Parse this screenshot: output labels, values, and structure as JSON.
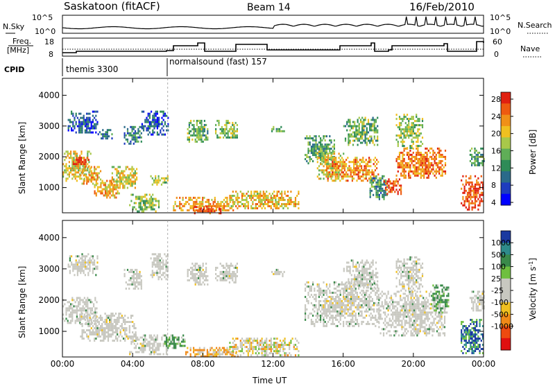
{
  "header": {
    "station": "Saskatoon (fitACF)",
    "beam": "Beam 14",
    "date": "16/Feb/2010"
  },
  "top_panels": {
    "nsky_label": "N.Sky",
    "nsearch_label": "N.Search",
    "freq_label_1": "Freq.",
    "freq_label_2": "[MHz]",
    "nave_label": "Nave",
    "cpid_label": "CPID",
    "noise_ticks_left": [
      "10^5",
      "10^0"
    ],
    "noise_ticks_right": [
      "10^5",
      "10^0"
    ],
    "freq_ticks": [
      "18",
      "8"
    ],
    "nave_ticks": [
      "60",
      "0"
    ],
    "cpid_segments": [
      {
        "name": "themis 3300",
        "start_hour": 0.0
      },
      {
        "name": "normalsound (fast) 157",
        "start_hour": 6.0
      }
    ]
  },
  "chart_data": [
    {
      "type": "heatmap",
      "title": "Power",
      "xlabel": "",
      "ylabel": "Slant Range [km]",
      "xlim": [
        0,
        24
      ],
      "ylim": [
        180,
        4550
      ],
      "x_ticks": [
        0,
        4,
        8,
        12,
        16,
        20,
        24
      ],
      "y_ticks": [
        1000,
        2000,
        3000,
        4000
      ],
      "colorbar": {
        "label": "Power [dB]",
        "ticks": [
          "28",
          "24",
          "20",
          "16",
          "12",
          "8",
          "4"
        ],
        "colors": [
          "#0000ff",
          "#1e3cbe",
          "#2a6a8a",
          "#2e8b57",
          "#5fae57",
          "#a8c84a",
          "#f0c020",
          "#f09018",
          "#ee5a10",
          "#e02010"
        ],
        "range": [
          0,
          30
        ]
      },
      "blobs": [
        {
          "x0": 0.0,
          "x1": 1.6,
          "y0": 1200,
          "y1": 2200,
          "level": 0.6
        },
        {
          "x0": 0.5,
          "x1": 1.5,
          "y0": 1700,
          "y1": 2000,
          "level": 0.9
        },
        {
          "x0": 0.3,
          "x1": 2.0,
          "y0": 2800,
          "y1": 3500,
          "level": 0.2
        },
        {
          "x0": 1.0,
          "x1": 2.2,
          "y0": 1100,
          "y1": 1700,
          "level": 0.7
        },
        {
          "x0": 1.8,
          "x1": 3.2,
          "y0": 700,
          "y1": 1250,
          "level": 0.7
        },
        {
          "x0": 2.8,
          "x1": 4.2,
          "y0": 1000,
          "y1": 1700,
          "level": 0.6
        },
        {
          "x0": 3.5,
          "x1": 4.5,
          "y0": 2400,
          "y1": 3000,
          "level": 0.3
        },
        {
          "x0": 2.0,
          "x1": 2.8,
          "y0": 2600,
          "y1": 2900,
          "level": 0.3
        },
        {
          "x0": 3.8,
          "x1": 5.5,
          "y0": 250,
          "y1": 800,
          "level": 0.5
        },
        {
          "x0": 4.5,
          "x1": 6.0,
          "y0": 2700,
          "y1": 3500,
          "level": 0.2
        },
        {
          "x0": 5.0,
          "x1": 6.0,
          "y0": 1100,
          "y1": 1400,
          "level": 0.5
        },
        {
          "x0": 6.3,
          "x1": 10.0,
          "y0": 250,
          "y1": 700,
          "level": 0.7
        },
        {
          "x0": 7.5,
          "x1": 9.0,
          "y0": 180,
          "y1": 400,
          "level": 0.9
        },
        {
          "x0": 9.5,
          "x1": 13.5,
          "y0": 300,
          "y1": 900,
          "level": 0.65
        },
        {
          "x0": 7.1,
          "x1": 8.3,
          "y0": 2500,
          "y1": 3200,
          "level": 0.45
        },
        {
          "x0": 8.7,
          "x1": 10.0,
          "y0": 2600,
          "y1": 3200,
          "level": 0.5
        },
        {
          "x0": 11.9,
          "x1": 12.6,
          "y0": 2800,
          "y1": 3000,
          "level": 0.4
        },
        {
          "x0": 13.8,
          "x1": 15.5,
          "y0": 1800,
          "y1": 2700,
          "level": 0.4
        },
        {
          "x0": 14.5,
          "x1": 16.0,
          "y0": 1300,
          "y1": 2200,
          "level": 0.6
        },
        {
          "x0": 15.0,
          "x1": 18.0,
          "y0": 1200,
          "y1": 2000,
          "level": 0.75
        },
        {
          "x0": 16.0,
          "x1": 18.0,
          "y0": 2400,
          "y1": 3300,
          "level": 0.45
        },
        {
          "x0": 17.5,
          "x1": 18.5,
          "y0": 600,
          "y1": 1400,
          "level": 0.35
        },
        {
          "x0": 18.3,
          "x1": 19.3,
          "y0": 800,
          "y1": 1300,
          "level": 0.85
        },
        {
          "x0": 19.0,
          "x1": 21.8,
          "y0": 1300,
          "y1": 2300,
          "level": 0.8
        },
        {
          "x0": 19.0,
          "x1": 20.5,
          "y0": 2300,
          "y1": 3400,
          "level": 0.5
        },
        {
          "x0": 22.7,
          "x1": 24.0,
          "y0": 300,
          "y1": 1400,
          "level": 0.9
        },
        {
          "x0": 23.2,
          "x1": 24.0,
          "y0": 1700,
          "y1": 2300,
          "level": 0.4
        }
      ]
    },
    {
      "type": "heatmap",
      "title": "Velocity",
      "xlabel": "Time UT",
      "ylabel": "Slant Range [km]",
      "xlim": [
        0,
        24
      ],
      "ylim": [
        180,
        4550
      ],
      "x_ticks": [
        0,
        4,
        8,
        12,
        16,
        20,
        24
      ],
      "x_tick_labels": [
        "00:00",
        "04:00",
        "08:00",
        "12:00",
        "16:00",
        "20:00",
        "00:00"
      ],
      "y_ticks": [
        1000,
        2000,
        3000,
        4000
      ],
      "colorbar": {
        "label": "Velocity [m s^-1]",
        "ticks": [
          "1000",
          "500",
          "100",
          "25",
          "-25",
          "-100",
          "-500",
          "-1000"
        ],
        "colors": [
          "#1a3aa0",
          "#2e8b8b",
          "#3a8a4a",
          "#6fbf3f",
          "#c8c8c0",
          "#c8c8c0",
          "#f0c020",
          "#f08a18",
          "#ee4a10",
          "#e01010"
        ]
      },
      "blobs": [
        {
          "x0": 0.0,
          "x1": 2.0,
          "y0": 1300,
          "y1": 2100,
          "level": "ground"
        },
        {
          "x0": 1.0,
          "x1": 4.2,
          "y0": 700,
          "y1": 1600,
          "level": "ground"
        },
        {
          "x0": 0.3,
          "x1": 2.0,
          "y0": 2800,
          "y1": 3500,
          "level": "ground"
        },
        {
          "x0": 3.5,
          "x1": 4.5,
          "y0": 2400,
          "y1": 3000,
          "level": "ground"
        },
        {
          "x0": 5.0,
          "x1": 6.0,
          "y0": 2700,
          "y1": 3500,
          "level": "ground"
        },
        {
          "x0": 3.8,
          "x1": 6.0,
          "y0": 250,
          "y1": 900,
          "level": "ground"
        },
        {
          "x0": 5.8,
          "x1": 7.0,
          "y0": 500,
          "y1": 900,
          "level": "green"
        },
        {
          "x0": 7.0,
          "x1": 10.0,
          "y0": 180,
          "y1": 500,
          "level": "orange"
        },
        {
          "x0": 9.5,
          "x1": 13.5,
          "y0": 250,
          "y1": 800,
          "level": "mixed"
        },
        {
          "x0": 7.1,
          "x1": 8.3,
          "y0": 2500,
          "y1": 3200,
          "level": "ground"
        },
        {
          "x0": 8.7,
          "x1": 10.0,
          "y0": 2600,
          "y1": 3200,
          "level": "ground"
        },
        {
          "x0": 11.9,
          "x1": 12.6,
          "y0": 2800,
          "y1": 3000,
          "level": "ground"
        },
        {
          "x0": 13.8,
          "x1": 18.0,
          "y0": 1200,
          "y1": 2600,
          "level": "ground"
        },
        {
          "x0": 16.0,
          "x1": 18.0,
          "y0": 2400,
          "y1": 3300,
          "level": "ground"
        },
        {
          "x0": 18.0,
          "x1": 21.8,
          "y0": 900,
          "y1": 2300,
          "level": "ground"
        },
        {
          "x0": 19.0,
          "x1": 20.5,
          "y0": 2300,
          "y1": 3400,
          "level": "ground"
        },
        {
          "x0": 21.0,
          "x1": 22.0,
          "y0": 1600,
          "y1": 2500,
          "level": "green"
        },
        {
          "x0": 22.7,
          "x1": 24.0,
          "y0": 300,
          "y1": 1400,
          "level": "blue"
        },
        {
          "x0": 23.2,
          "x1": 24.0,
          "y0": 1700,
          "y1": 2300,
          "level": "ground"
        }
      ]
    }
  ]
}
